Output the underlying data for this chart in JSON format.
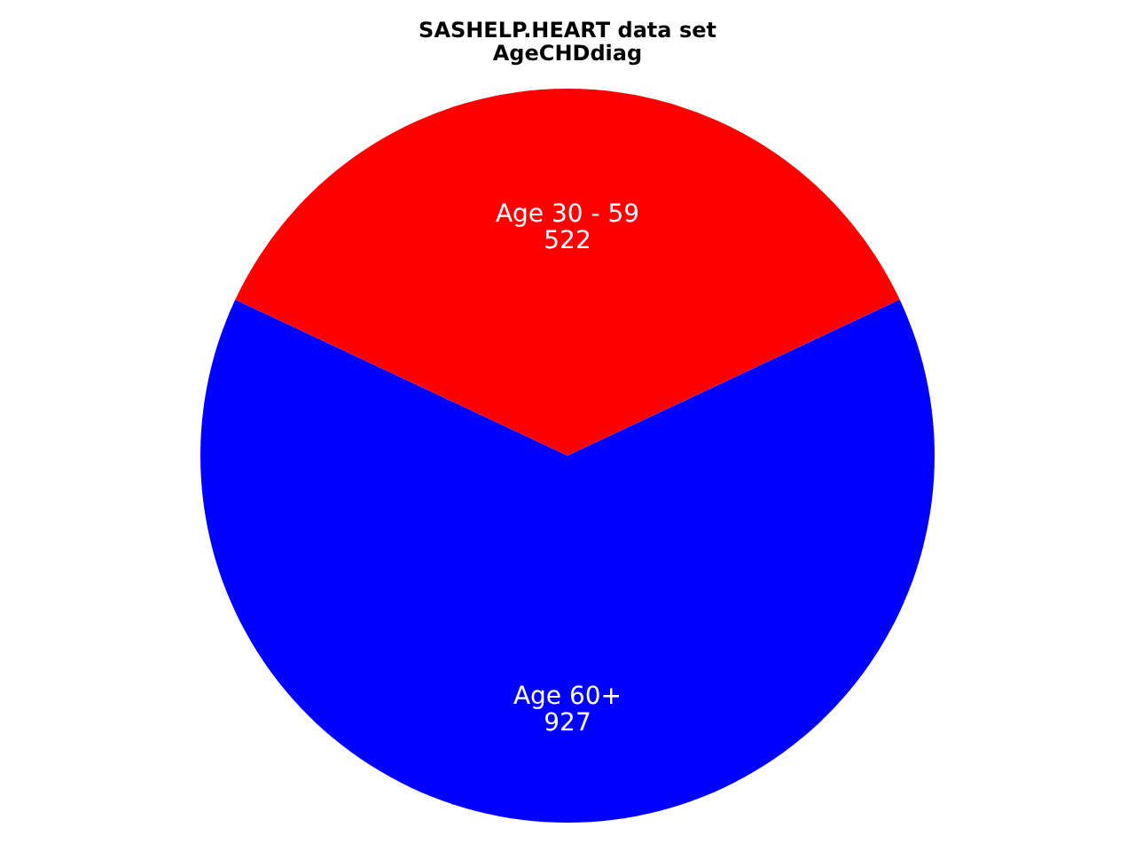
{
  "chart_data": {
    "type": "pie",
    "title": "SASHELP.HEART data set",
    "subtitle": "AgeCHDdiag",
    "categories": [
      "Age 30 - 59",
      "Age 60+"
    ],
    "values": [
      522,
      927
    ],
    "colors": [
      "#ff0000",
      "#0000ff"
    ],
    "data_labels": true
  }
}
